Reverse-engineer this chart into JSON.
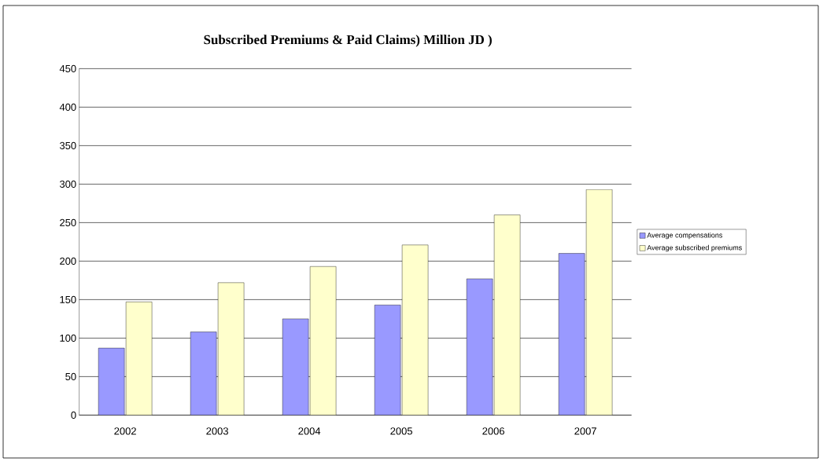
{
  "chart_data": {
    "type": "bar",
    "title": " Subscribed Premiums & Paid Claims) Million JD )",
    "categories": [
      "2002",
      "2003",
      "2004",
      "2005",
      "2006",
      "2007"
    ],
    "series": [
      {
        "name": "Average compensations",
        "color": "#9999ff",
        "values": [
          87,
          108,
          125,
          143,
          177,
          210
        ]
      },
      {
        "name": "Average subscribed premiums",
        "color": "#ffffcc",
        "values": [
          147,
          172,
          193,
          221,
          260,
          293
        ]
      }
    ],
    "ylim": [
      0,
      450
    ],
    "yticks": [
      0,
      50,
      100,
      150,
      200,
      250,
      300,
      350,
      400,
      450
    ],
    "grid": "y",
    "legend": "right"
  }
}
